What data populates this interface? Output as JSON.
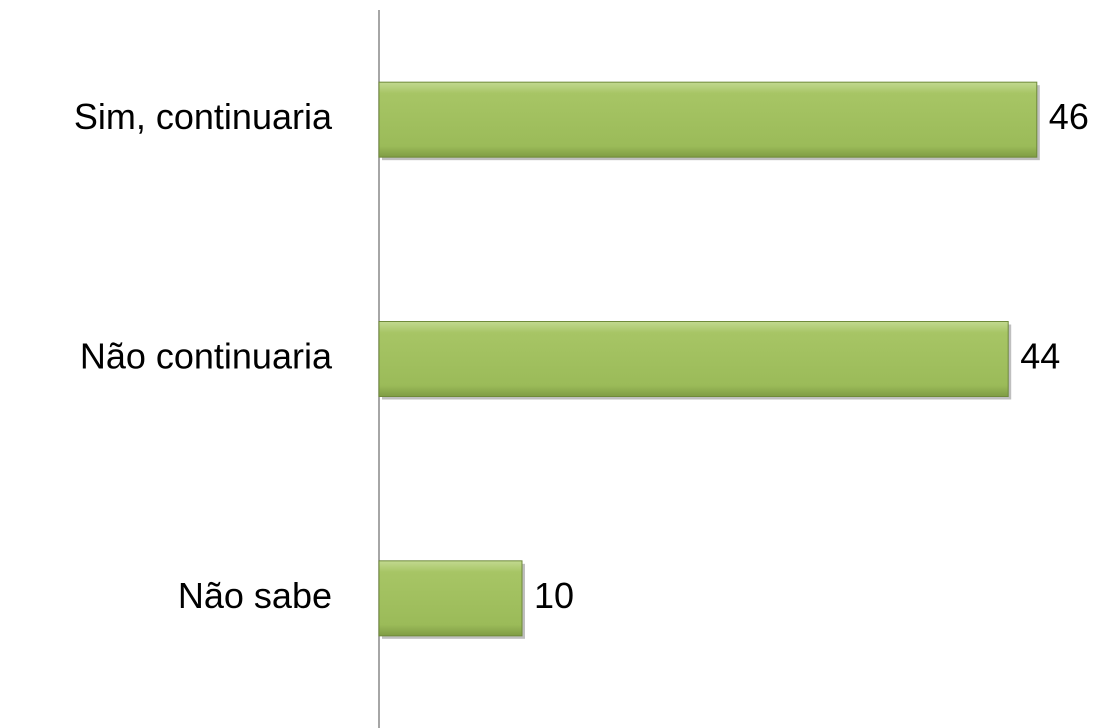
{
  "chart_data": {
    "type": "bar",
    "orientation": "horizontal",
    "categories": [
      "Sim, continuaria",
      "Não continuaria",
      "Não sabe"
    ],
    "values": [
      46,
      44,
      10
    ],
    "color": "#9bbb59"
  }
}
